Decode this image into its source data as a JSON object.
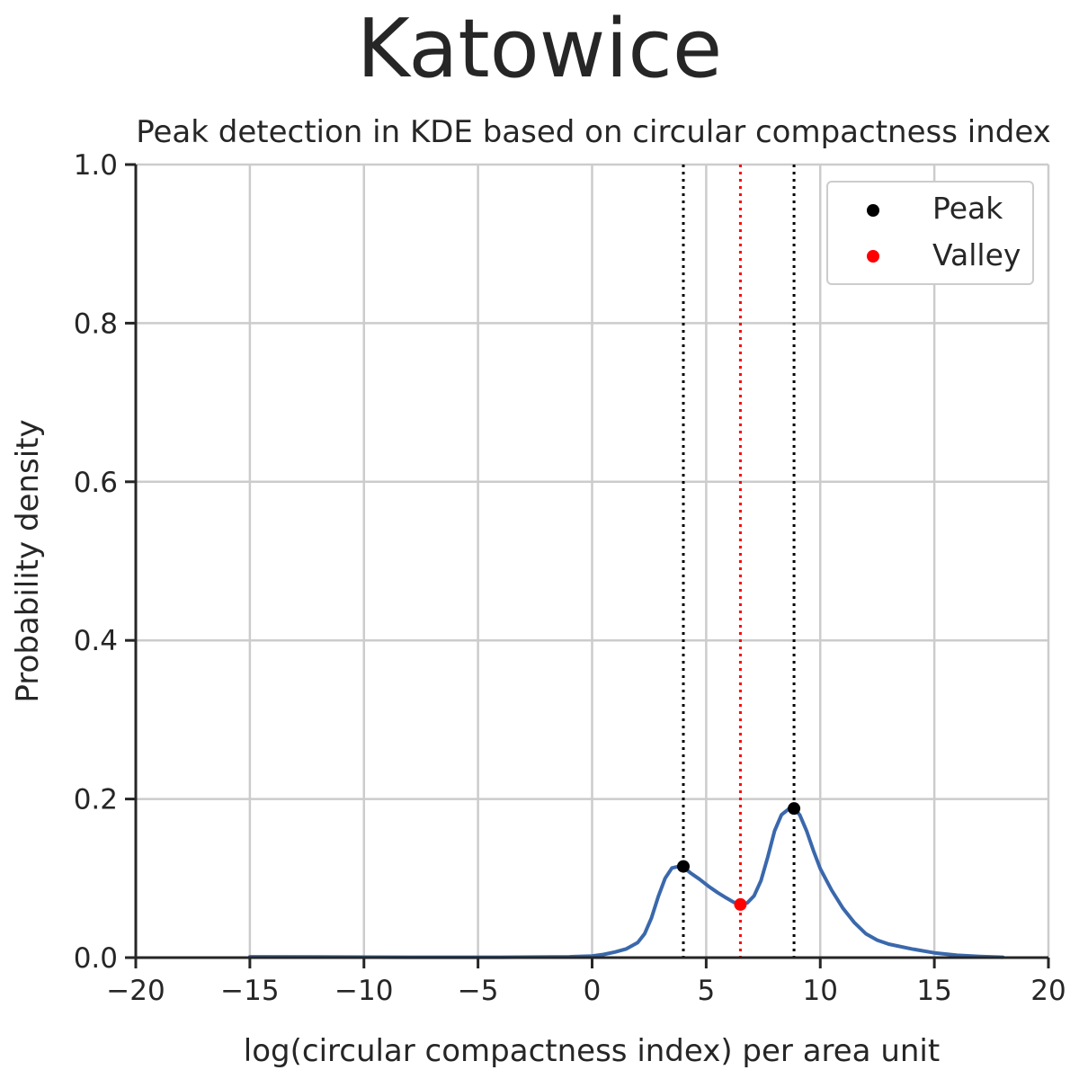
{
  "figure_title": "Katowice",
  "chart_data": {
    "type": "line",
    "title": "Peak detection in KDE based on circular compactness index",
    "xlabel": "log(circular compactness index) per area unit",
    "ylabel": "Probability density",
    "xlim": [
      -20,
      20
    ],
    "ylim": [
      0,
      1.0
    ],
    "xticks": [
      -20,
      -15,
      -10,
      -5,
      0,
      5,
      10,
      15,
      20
    ],
    "xtick_labels": [
      "−20",
      "−15",
      "−10",
      "−5",
      "0",
      "5",
      "10",
      "15",
      "20"
    ],
    "yticks": [
      0,
      0.2,
      0.4,
      0.6,
      0.8,
      1.0
    ],
    "ytick_labels": [
      "0.0",
      "0.2",
      "0.4",
      "0.6",
      "0.8",
      "1.0"
    ],
    "grid": true,
    "legend_position": "top-right",
    "series": [
      {
        "color": "#3a68ac",
        "x": [
          -15,
          -12,
          -8,
          -4,
          -1,
          0,
          0.5,
          1,
          1.5,
          2,
          2.3,
          2.6,
          2.9,
          3.2,
          3.5,
          3.8,
          4.0,
          4.3,
          4.7,
          5.1,
          5.5,
          5.9,
          6.2,
          6.5,
          6.8,
          7.1,
          7.4,
          7.7,
          8.0,
          8.3,
          8.6,
          8.85,
          9.1,
          9.4,
          9.7,
          10.0,
          10.5,
          11.0,
          11.5,
          12.0,
          12.5,
          13.0,
          14.0,
          15.0,
          16.0,
          17.0,
          18.0
        ],
        "y": [
          0.001,
          0.0008,
          0.0005,
          0.0005,
          0.001,
          0.002,
          0.004,
          0.007,
          0.011,
          0.019,
          0.03,
          0.05,
          0.077,
          0.1,
          0.113,
          0.115,
          0.114,
          0.107,
          0.099,
          0.09,
          0.082,
          0.075,
          0.07,
          0.067,
          0.069,
          0.078,
          0.097,
          0.127,
          0.16,
          0.18,
          0.187,
          0.188,
          0.18,
          0.16,
          0.135,
          0.112,
          0.085,
          0.062,
          0.044,
          0.03,
          0.022,
          0.017,
          0.011,
          0.006,
          0.003,
          0.0015,
          0.0005
        ]
      }
    ],
    "peaks": {
      "label": "Peak",
      "color": "#000000",
      "x": [
        4.0,
        8.85
      ],
      "y": [
        0.115,
        0.188
      ]
    },
    "valleys": {
      "label": "Valley",
      "color": "#ff0000",
      "x": [
        6.5
      ],
      "y": [
        0.067
      ]
    }
  }
}
